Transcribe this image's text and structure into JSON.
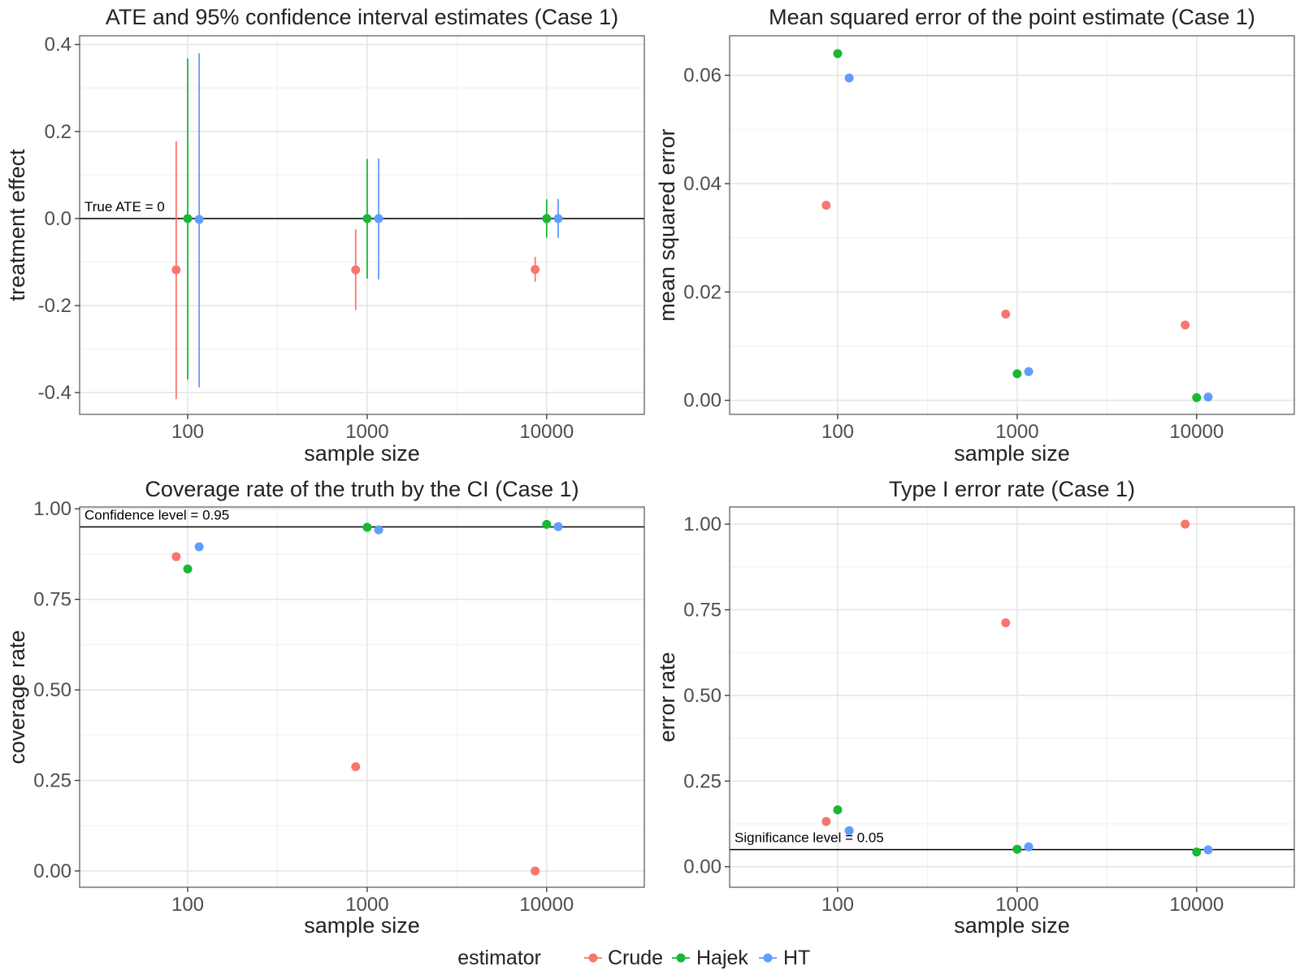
{
  "colors": {
    "Crude": "#F8766D",
    "Hajek": "#19B733",
    "HT": "#619CFF",
    "grid_major": "#E6E6E6",
    "grid_minor": "#F2F2F2",
    "panel_border": "#555555",
    "text": "#222222",
    "tick_text": "#4D4D4D"
  },
  "legend": {
    "title": "estimator",
    "items": [
      "Crude",
      "Hajek",
      "HT"
    ]
  },
  "chart_data": [
    {
      "type": "scatter",
      "id": "ate",
      "title": "ATE and 95% confidence interval estimates (Case 1)",
      "xlabel": "sample size",
      "ylabel": "treatment effect",
      "xscale": "log10",
      "xlim": [
        25,
        35000
      ],
      "ylim": [
        -0.45,
        0.42
      ],
      "xticks": [
        100,
        1000,
        10000
      ],
      "xtick_labels": [
        "100",
        "1000",
        "10000"
      ],
      "yticks": [
        -0.4,
        -0.2,
        0.0,
        0.2,
        0.4
      ],
      "ytick_labels": [
        "-0.4",
        "-0.2",
        "0.0",
        "0.2",
        "0.4"
      ],
      "hline": {
        "y": 0,
        "label": "True ATE = 0"
      },
      "series": [
        {
          "name": "Crude",
          "x": [
            100,
            1000,
            10000
          ],
          "y": [
            -0.118,
            -0.118,
            -0.117
          ],
          "lower": [
            -0.415,
            -0.21,
            -0.145
          ],
          "upper": [
            0.178,
            -0.025,
            -0.088
          ]
        },
        {
          "name": "Hajek",
          "x": [
            100,
            1000,
            10000
          ],
          "y": [
            0.0,
            0.0,
            0.0
          ],
          "lower": [
            -0.37,
            -0.138,
            -0.044
          ],
          "upper": [
            0.368,
            0.137,
            0.044
          ]
        },
        {
          "name": "HT",
          "x": [
            100,
            1000,
            10000
          ],
          "y": [
            -0.002,
            0.0,
            0.0
          ],
          "lower": [
            -0.388,
            -0.14,
            -0.045
          ],
          "upper": [
            0.38,
            0.138,
            0.045
          ]
        }
      ]
    },
    {
      "type": "scatter",
      "id": "mse",
      "title": "Mean squared error of the point estimate (Case 1)",
      "xlabel": "sample size",
      "ylabel": "mean squared error",
      "xscale": "log10",
      "xlim": [
        25,
        35000
      ],
      "ylim": [
        -0.0026,
        0.0673
      ],
      "xticks": [
        100,
        1000,
        10000
      ],
      "xtick_labels": [
        "100",
        "1000",
        "10000"
      ],
      "yticks": [
        0.0,
        0.02,
        0.04,
        0.06
      ],
      "ytick_labels": [
        "0.00",
        "0.02",
        "0.04",
        "0.06"
      ],
      "series": [
        {
          "name": "Crude",
          "x": [
            100,
            1000,
            10000
          ],
          "y": [
            0.036,
            0.0159,
            0.0139
          ]
        },
        {
          "name": "Hajek",
          "x": [
            100,
            1000,
            10000
          ],
          "y": [
            0.064,
            0.0049,
            0.0005
          ]
        },
        {
          "name": "HT",
          "x": [
            100,
            1000,
            10000
          ],
          "y": [
            0.0595,
            0.0053,
            0.0006
          ]
        }
      ]
    },
    {
      "type": "scatter",
      "id": "coverage",
      "title": "Coverage rate of the truth by the CI (Case 1)",
      "xlabel": "sample size",
      "ylabel": "coverage rate",
      "xscale": "log10",
      "xlim": [
        25,
        35000
      ],
      "ylim": [
        -0.045,
        1.005
      ],
      "xticks": [
        100,
        1000,
        10000
      ],
      "xtick_labels": [
        "100",
        "1000",
        "10000"
      ],
      "yticks": [
        0.0,
        0.25,
        0.5,
        0.75,
        1.0
      ],
      "ytick_labels": [
        "0.00",
        "0.25",
        "0.50",
        "0.75",
        "1.00"
      ],
      "hline": {
        "y": 0.95,
        "label": "Confidence level = 0.95"
      },
      "series": [
        {
          "name": "Crude",
          "x": [
            100,
            1000,
            10000
          ],
          "y": [
            0.868,
            0.288,
            0.0
          ]
        },
        {
          "name": "Hajek",
          "x": [
            100,
            1000,
            10000
          ],
          "y": [
            0.834,
            0.949,
            0.957
          ]
        },
        {
          "name": "HT",
          "x": [
            100,
            1000,
            10000
          ],
          "y": [
            0.895,
            0.942,
            0.951
          ]
        }
      ]
    },
    {
      "type": "scatter",
      "id": "typeI",
      "title": "Type I error rate (Case 1)",
      "xlabel": "sample size",
      "ylabel": "error rate",
      "xscale": "log10",
      "xlim": [
        25,
        35000
      ],
      "ylim": [
        -0.06,
        1.05
      ],
      "xticks": [
        100,
        1000,
        10000
      ],
      "xtick_labels": [
        "100",
        "1000",
        "10000"
      ],
      "yticks": [
        0.0,
        0.25,
        0.5,
        0.75,
        1.0
      ],
      "ytick_labels": [
        "0.00",
        "0.25",
        "0.50",
        "0.75",
        "1.00"
      ],
      "hline": {
        "y": 0.05,
        "label": "Significance level = 0.05"
      },
      "series": [
        {
          "name": "Crude",
          "x": [
            100,
            1000,
            10000
          ],
          "y": [
            0.132,
            0.712,
            1.0
          ]
        },
        {
          "name": "Hajek",
          "x": [
            100,
            1000,
            10000
          ],
          "y": [
            0.166,
            0.051,
            0.043
          ]
        },
        {
          "name": "HT",
          "x": [
            100,
            1000,
            10000
          ],
          "y": [
            0.105,
            0.058,
            0.049
          ]
        }
      ]
    }
  ]
}
